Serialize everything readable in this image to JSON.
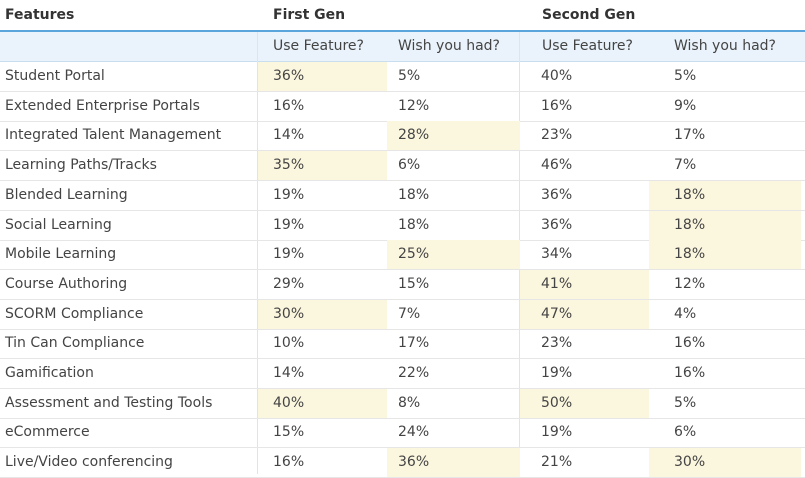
{
  "chart_data": {
    "type": "table",
    "header": {
      "features": "Features",
      "first_gen": "First Gen",
      "second_gen": "Second Gen",
      "use_feature_1": "Use Feature?",
      "wish_1": "Wish you had?",
      "use_feature_2": "Use Feature?",
      "wish_2": "Wish you had?"
    },
    "highlight_color": "#fbf6de",
    "accent_color": "#5aa6dc",
    "rows": [
      {
        "feature": "Student Portal",
        "values": [
          "36%",
          "5%",
          "40%",
          "5%"
        ],
        "highlight": [
          true,
          false,
          false,
          false
        ]
      },
      {
        "feature": "Extended Enterprise Portals",
        "values": [
          "16%",
          "12%",
          "16%",
          "9%"
        ],
        "highlight": [
          false,
          false,
          false,
          false
        ]
      },
      {
        "feature": "Integrated Talent Management",
        "values": [
          "14%",
          "28%",
          "23%",
          "17%"
        ],
        "highlight": [
          false,
          true,
          false,
          false
        ]
      },
      {
        "feature": "Learning Paths/Tracks",
        "values": [
          "35%",
          "6%",
          "46%",
          "7%"
        ],
        "highlight": [
          true,
          false,
          false,
          false
        ]
      },
      {
        "feature": "Blended Learning",
        "values": [
          "19%",
          "18%",
          "36%",
          "18%"
        ],
        "highlight": [
          false,
          false,
          false,
          true
        ]
      },
      {
        "feature": "Social Learning",
        "values": [
          "19%",
          "18%",
          "36%",
          "18%"
        ],
        "highlight": [
          false,
          false,
          false,
          true
        ]
      },
      {
        "feature": "Mobile Learning",
        "values": [
          "19%",
          "25%",
          "34%",
          "18%"
        ],
        "highlight": [
          false,
          true,
          false,
          true
        ]
      },
      {
        "feature": "Course Authoring",
        "values": [
          "29%",
          "15%",
          "41%",
          "12%"
        ],
        "highlight": [
          false,
          false,
          true,
          false
        ]
      },
      {
        "feature": "SCORM Compliance",
        "values": [
          "30%",
          "7%",
          "47%",
          "4%"
        ],
        "highlight": [
          true,
          false,
          true,
          false
        ]
      },
      {
        "feature": "Tin Can Compliance",
        "values": [
          "10%",
          "17%",
          "23%",
          "16%"
        ],
        "highlight": [
          false,
          false,
          false,
          false
        ]
      },
      {
        "feature": "Gamification",
        "values": [
          "14%",
          "22%",
          "19%",
          "16%"
        ],
        "highlight": [
          false,
          false,
          false,
          false
        ]
      },
      {
        "feature": "Assessment and Testing Tools",
        "values": [
          "40%",
          "8%",
          "50%",
          "5%"
        ],
        "highlight": [
          true,
          false,
          true,
          false
        ]
      },
      {
        "feature": "eCommerce",
        "values": [
          "15%",
          "24%",
          "19%",
          "6%"
        ],
        "highlight": [
          false,
          false,
          false,
          false
        ]
      },
      {
        "feature": "Live/Video conferencing",
        "values": [
          "16%",
          "36%",
          "21%",
          "30%"
        ],
        "highlight": [
          false,
          true,
          false,
          true
        ]
      }
    ]
  }
}
